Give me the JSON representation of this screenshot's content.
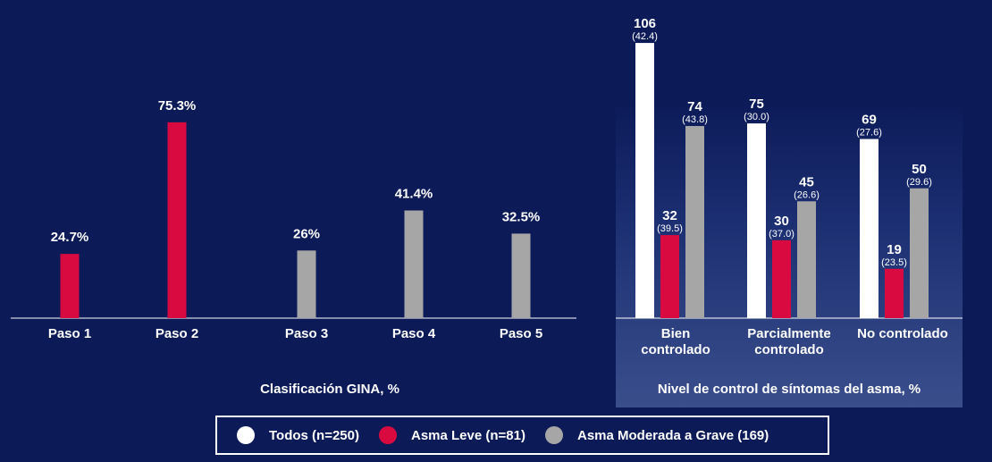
{
  "colors": {
    "background": "#0c1a58",
    "todos": "#ffffff",
    "leve": "#d80a3f",
    "moderada": "#a6a6a6"
  },
  "legend": {
    "items": [
      {
        "label": "Todos (n=250)",
        "color": "#ffffff"
      },
      {
        "label": "Asma Leve (n=81)",
        "color": "#d80a3f"
      },
      {
        "label": "Asma Moderada a Grave (169)",
        "color": "#a6a6a6"
      }
    ]
  },
  "chart_data": [
    {
      "type": "bar",
      "title": "Clasificación GINA, %",
      "categories": [
        "Paso 1",
        "Paso 2",
        "Paso 3",
        "Paso 4",
        "Paso 5"
      ],
      "values": [
        24.7,
        75.3,
        26,
        41.4,
        32.5
      ],
      "value_labels": [
        "24.7%",
        "75.3%",
        "26%",
        "41.4%",
        "32.5%"
      ],
      "bar_colors": [
        "#d80a3f",
        "#d80a3f",
        "#a6a6a6",
        "#a6a6a6",
        "#a6a6a6"
      ],
      "ylim": [
        0,
        100
      ],
      "grid": false
    },
    {
      "type": "bar",
      "title": "Nivel de control de síntomas del asma, %",
      "categories": [
        [
          "Bien",
          "controlado"
        ],
        [
          "Parcialmente",
          "controlado"
        ],
        [
          "No controlado"
        ]
      ],
      "series": [
        {
          "name": "Todos (n=250)",
          "color": "#ffffff",
          "values": [
            106,
            75,
            69
          ],
          "percent_labels": [
            "(42.4)",
            "(30.0)",
            "(27.6)"
          ]
        },
        {
          "name": "Asma Leve (n=81)",
          "color": "#d80a3f",
          "values": [
            32,
            30,
            19
          ],
          "percent_labels": [
            "(39.5)",
            "(37.0)",
            "(23.5)"
          ]
        },
        {
          "name": "Asma Moderada a Grave (169)",
          "color": "#a6a6a6",
          "values": [
            74,
            45,
            50
          ],
          "percent_labels": [
            "(43.8)",
            "(26.6)",
            "(29.6)"
          ]
        }
      ],
      "ylim": [
        0,
        113
      ],
      "grid": false
    }
  ]
}
